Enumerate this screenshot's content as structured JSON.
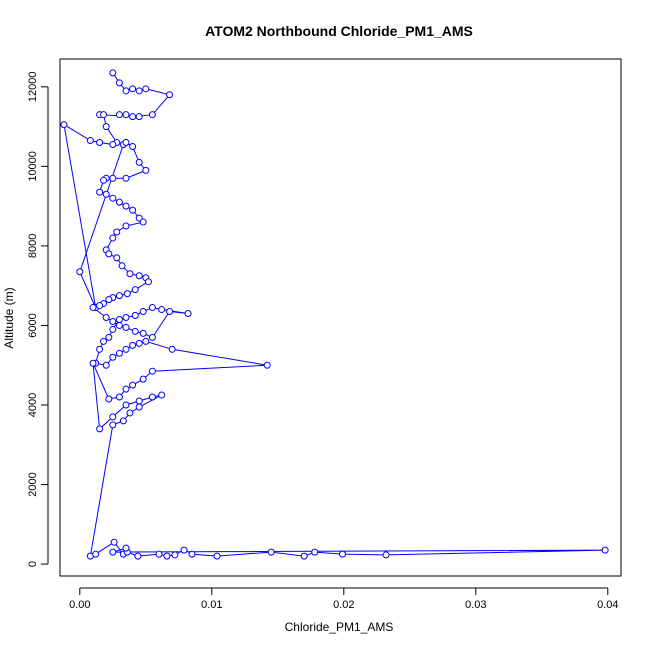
{
  "chart_data": {
    "type": "line",
    "title": "ATOM2 Northbound Chloride_PM1_AMS",
    "xlabel": "Chloride_PM1_AMS",
    "ylabel": "Altitude (m)",
    "xlim": [
      -0.0015,
      0.041
    ],
    "ylim": [
      -300,
      12700
    ],
    "x_ticks": [
      0.0,
      0.01,
      0.02,
      0.03,
      0.04
    ],
    "x_tick_labels": [
      "0.00",
      "0.01",
      "0.02",
      "0.03",
      "0.04"
    ],
    "y_ticks": [
      0,
      2000,
      4000,
      6000,
      8000,
      10000,
      12000
    ],
    "y_tick_labels": [
      "0",
      "2000",
      "4000",
      "6000",
      "8000",
      "10000",
      "12000"
    ],
    "grid": false,
    "legend": "none",
    "series_color": "#0000ff",
    "series": [
      {
        "x": [
          0.0025,
          0.003,
          0.0035,
          0.004,
          0.0045,
          0.005,
          0.0068,
          0.0055,
          0.004,
          0.003,
          0.0035,
          0.0045,
          0.0015,
          0.0018,
          0.002,
          0.0028,
          0.0033,
          0.0,
          0.0012,
          -0.0012,
          0.0008,
          0.0015,
          0.0025,
          0.0035,
          0.004,
          0.0045,
          0.005,
          0.0035,
          0.0025,
          0.002,
          0.0018,
          0.0015,
          0.002,
          0.0025,
          0.003,
          0.0035,
          0.004,
          0.0045,
          0.0048,
          0.0035,
          0.0028,
          0.0025,
          0.002,
          0.0022,
          0.0028,
          0.0032,
          0.0038,
          0.0045,
          0.005,
          0.0052,
          0.0042,
          0.0036,
          0.003,
          0.0025,
          0.0022,
          0.0018,
          0.0015,
          0.001,
          0.002,
          0.0025,
          0.003,
          0.0035,
          0.0042,
          0.0048,
          0.0055,
          0.0068,
          0.0082,
          0.0062,
          0.0055,
          0.0048,
          0.0042,
          0.0035,
          0.003,
          0.0025,
          0.0022,
          0.0018,
          0.0015,
          0.0012,
          0.002,
          0.0025,
          0.003,
          0.0035,
          0.004,
          0.0045,
          0.005,
          0.007,
          0.0142,
          0.0055,
          0.0048,
          0.004,
          0.0035,
          0.003,
          0.0022,
          0.001,
          0.0015,
          0.0025,
          0.0035,
          0.0045,
          0.0055,
          0.0062,
          0.0045,
          0.0038,
          0.0033,
          0.0025,
          0.0008,
          0.0012,
          0.0026,
          0.0033,
          0.0036,
          0.0044,
          0.006,
          0.0066,
          0.0072,
          0.0079,
          0.0085,
          0.0104,
          0.0145,
          0.017,
          0.0178,
          0.0199,
          0.0232,
          0.0398,
          0.0025,
          0.0035
        ],
        "y": [
          12350,
          12100,
          11900,
          11950,
          11900,
          11950,
          11800,
          11300,
          11250,
          11300,
          11300,
          11250,
          11300,
          11300,
          11000,
          10600,
          10550,
          7350,
          6450,
          11050,
          10650,
          10600,
          10550,
          10600,
          10500,
          10100,
          9900,
          9700,
          9700,
          9700,
          9650,
          9350,
          9300,
          9200,
          9100,
          9000,
          8900,
          8700,
          8600,
          8500,
          8350,
          8200,
          7900,
          7800,
          7700,
          7500,
          7300,
          7250,
          7200,
          7100,
          6900,
          6800,
          6750,
          6700,
          6650,
          6550,
          6500,
          6450,
          6200,
          6100,
          6000,
          5950,
          5850,
          5800,
          5700,
          6350,
          6300,
          6400,
          6450,
          6350,
          6250,
          6200,
          6150,
          5900,
          5700,
          5600,
          5400,
          5050,
          5000,
          5200,
          5300,
          5400,
          5500,
          5550,
          5600,
          5400,
          5000,
          4850,
          4650,
          4500,
          4400,
          4200,
          4150,
          5050,
          3400,
          3700,
          4000,
          4100,
          4200,
          4250,
          3950,
          3800,
          3600,
          3500,
          200,
          250,
          550,
          250,
          300,
          200,
          250,
          200,
          230,
          350,
          250,
          200,
          300,
          200,
          300,
          250,
          230,
          350,
          300,
          400
        ]
      }
    ]
  }
}
